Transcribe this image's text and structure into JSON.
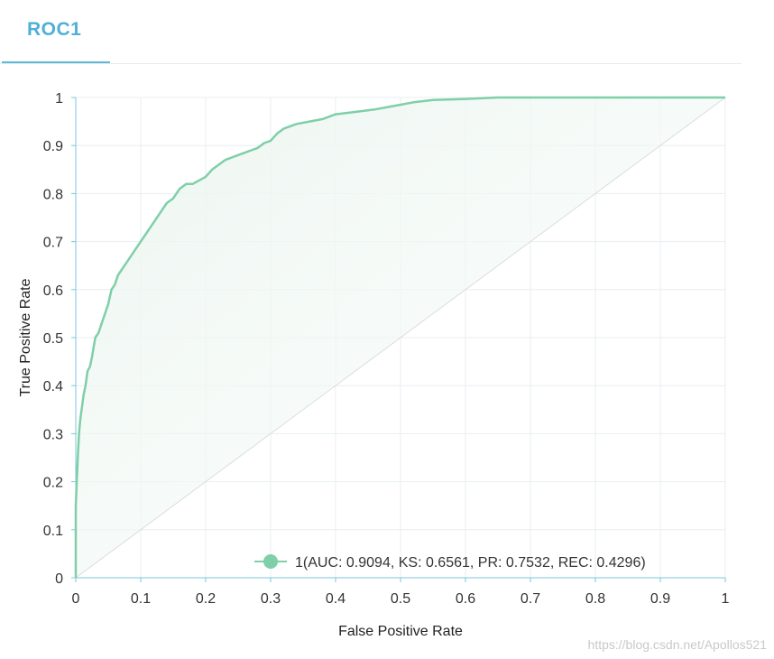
{
  "tab": {
    "label": "ROC1"
  },
  "watermark": "https://blog.csdn.net/Apollos521",
  "colors": {
    "curve": "#7fcfa8",
    "axis": "#7cc4dc",
    "grid": "#e8eef2",
    "diagonal": "#d9dde0",
    "tab_accent": "#4fb0d6"
  },
  "chart_data": {
    "type": "line",
    "title": "",
    "xlabel": "False Positive Rate",
    "ylabel": "True Positive Rate",
    "xlim": [
      0,
      1
    ],
    "ylim": [
      0,
      1
    ],
    "x_ticks": [
      "0",
      "0.1",
      "0.2",
      "0.3",
      "0.4",
      "0.5",
      "0.6",
      "0.7",
      "0.8",
      "0.9",
      "1"
    ],
    "y_ticks": [
      "0",
      "0.1",
      "0.2",
      "0.3",
      "0.4",
      "0.5",
      "0.6",
      "0.7",
      "0.8",
      "0.9",
      "1"
    ],
    "grid": true,
    "legend_position": "bottom-right",
    "series": [
      {
        "name": "1(AUC: 0.9094, KS: 0.6561, PR: 0.7532, REC: 0.4296)",
        "x": [
          0,
          0,
          0.003,
          0.005,
          0.007,
          0.01,
          0.012,
          0.015,
          0.018,
          0.022,
          0.025,
          0.03,
          0.035,
          0.04,
          0.045,
          0.05,
          0.055,
          0.06,
          0.065,
          0.07,
          0.075,
          0.08,
          0.085,
          0.09,
          0.1,
          0.11,
          0.12,
          0.13,
          0.14,
          0.15,
          0.16,
          0.17,
          0.18,
          0.2,
          0.21,
          0.22,
          0.23,
          0.24,
          0.25,
          0.26,
          0.27,
          0.28,
          0.29,
          0.3,
          0.31,
          0.32,
          0.34,
          0.36,
          0.38,
          0.4,
          0.43,
          0.46,
          0.48,
          0.5,
          0.52,
          0.55,
          0.6,
          0.65,
          0.7,
          0.8,
          0.9,
          1
        ],
        "y": [
          0,
          0.15,
          0.25,
          0.3,
          0.33,
          0.36,
          0.38,
          0.4,
          0.43,
          0.44,
          0.46,
          0.5,
          0.51,
          0.53,
          0.55,
          0.57,
          0.6,
          0.61,
          0.63,
          0.64,
          0.65,
          0.66,
          0.67,
          0.68,
          0.7,
          0.72,
          0.74,
          0.76,
          0.78,
          0.79,
          0.81,
          0.82,
          0.82,
          0.835,
          0.85,
          0.86,
          0.87,
          0.875,
          0.88,
          0.885,
          0.89,
          0.895,
          0.905,
          0.91,
          0.925,
          0.935,
          0.945,
          0.95,
          0.955,
          0.965,
          0.97,
          0.975,
          0.98,
          0.985,
          0.99,
          0.995,
          0.997,
          1,
          1,
          1,
          1,
          1
        ]
      }
    ]
  }
}
